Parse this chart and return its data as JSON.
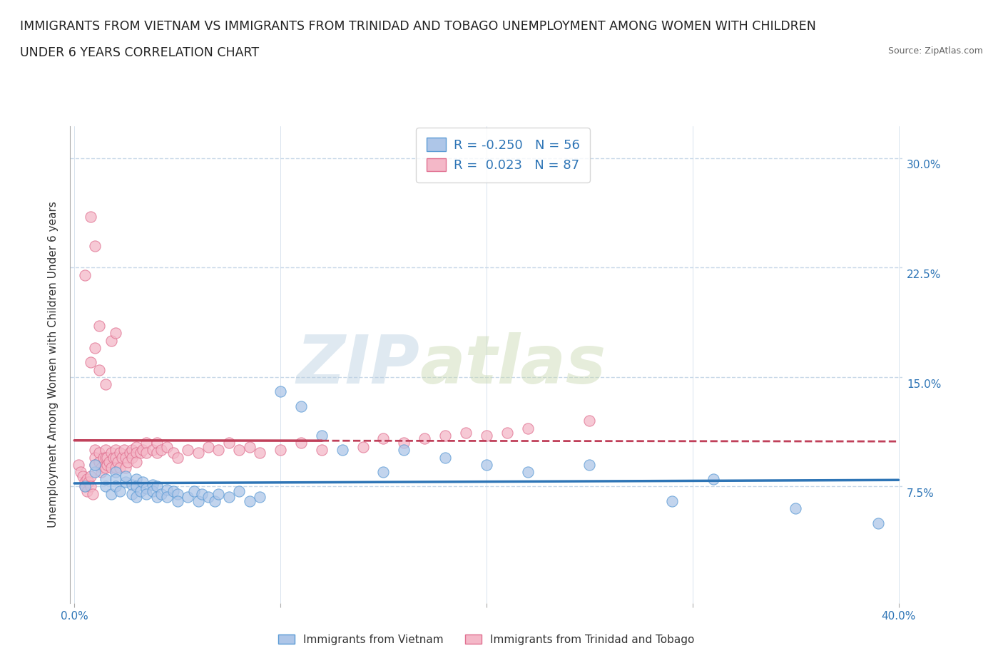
{
  "title_line1": "IMMIGRANTS FROM VIETNAM VS IMMIGRANTS FROM TRINIDAD AND TOBAGO UNEMPLOYMENT AMONG WOMEN WITH CHILDREN",
  "title_line2": "UNDER 6 YEARS CORRELATION CHART",
  "source": "Source: ZipAtlas.com",
  "ylabel": "Unemployment Among Women with Children Under 6 years",
  "xlim": [
    -0.002,
    0.402
  ],
  "ylim": [
    -0.005,
    0.322
  ],
  "xticks": [
    0.0,
    0.1,
    0.2,
    0.3,
    0.4
  ],
  "xticklabels": [
    "0.0%",
    "",
    "",
    "",
    "40.0%"
  ],
  "yticks": [
    0.0,
    0.075,
    0.15,
    0.225,
    0.3
  ],
  "yticklabels": [
    "",
    "7.5%",
    "15.0%",
    "22.5%",
    "30.0%"
  ],
  "vietnam_color": "#aec6e8",
  "vietnam_edge_color": "#5b9bd5",
  "vietnam_line_color": "#2e75b6",
  "tt_color": "#f4b8c8",
  "tt_edge_color": "#e07090",
  "tt_line_color": "#c0405a",
  "legend_label_color": "#2e75b6",
  "R_vietnam": -0.25,
  "N_vietnam": 56,
  "R_tt": 0.023,
  "N_tt": 87,
  "watermark_zip": "ZIP",
  "watermark_atlas": "atlas",
  "title_fontsize": 12.5,
  "label_fontsize": 11,
  "tick_fontsize": 11,
  "legend_fontsize": 13,
  "grid_color": "#c8d8e8",
  "vietnam_scatter_x": [
    0.005,
    0.01,
    0.01,
    0.015,
    0.015,
    0.018,
    0.02,
    0.02,
    0.02,
    0.022,
    0.025,
    0.025,
    0.028,
    0.028,
    0.03,
    0.03,
    0.03,
    0.032,
    0.033,
    0.035,
    0.035,
    0.038,
    0.038,
    0.04,
    0.04,
    0.042,
    0.045,
    0.045,
    0.048,
    0.05,
    0.05,
    0.055,
    0.058,
    0.06,
    0.062,
    0.065,
    0.068,
    0.07,
    0.075,
    0.08,
    0.085,
    0.09,
    0.1,
    0.11,
    0.12,
    0.13,
    0.15,
    0.16,
    0.18,
    0.2,
    0.22,
    0.25,
    0.29,
    0.31,
    0.35,
    0.39
  ],
  "vietnam_scatter_y": [
    0.075,
    0.085,
    0.09,
    0.075,
    0.08,
    0.07,
    0.085,
    0.08,
    0.075,
    0.072,
    0.078,
    0.082,
    0.076,
    0.07,
    0.08,
    0.075,
    0.068,
    0.072,
    0.078,
    0.074,
    0.07,
    0.076,
    0.072,
    0.075,
    0.068,
    0.07,
    0.073,
    0.068,
    0.072,
    0.07,
    0.065,
    0.068,
    0.072,
    0.065,
    0.07,
    0.068,
    0.065,
    0.07,
    0.068,
    0.072,
    0.065,
    0.068,
    0.14,
    0.13,
    0.11,
    0.1,
    0.085,
    0.1,
    0.095,
    0.09,
    0.085,
    0.09,
    0.065,
    0.08,
    0.06,
    0.05
  ],
  "tt_scatter_x": [
    0.002,
    0.003,
    0.004,
    0.005,
    0.005,
    0.006,
    0.006,
    0.007,
    0.008,
    0.008,
    0.009,
    0.01,
    0.01,
    0.01,
    0.012,
    0.012,
    0.013,
    0.013,
    0.014,
    0.015,
    0.015,
    0.015,
    0.016,
    0.016,
    0.017,
    0.018,
    0.018,
    0.019,
    0.02,
    0.02,
    0.02,
    0.021,
    0.022,
    0.022,
    0.023,
    0.024,
    0.025,
    0.025,
    0.026,
    0.027,
    0.028,
    0.028,
    0.03,
    0.03,
    0.03,
    0.032,
    0.033,
    0.035,
    0.035,
    0.038,
    0.04,
    0.04,
    0.042,
    0.045,
    0.048,
    0.05,
    0.055,
    0.06,
    0.065,
    0.07,
    0.075,
    0.08,
    0.085,
    0.09,
    0.1,
    0.11,
    0.12,
    0.14,
    0.15,
    0.16,
    0.17,
    0.18,
    0.19,
    0.2,
    0.21,
    0.22,
    0.25,
    0.008,
    0.01,
    0.012,
    0.015,
    0.018,
    0.02,
    0.005,
    0.008,
    0.01,
    0.012
  ],
  "tt_scatter_y": [
    0.09,
    0.085,
    0.082,
    0.078,
    0.075,
    0.08,
    0.072,
    0.078,
    0.082,
    0.075,
    0.07,
    0.1,
    0.095,
    0.09,
    0.098,
    0.092,
    0.088,
    0.085,
    0.095,
    0.1,
    0.095,
    0.088,
    0.095,
    0.09,
    0.092,
    0.098,
    0.088,
    0.095,
    0.1,
    0.095,
    0.088,
    0.092,
    0.098,
    0.088,
    0.095,
    0.1,
    0.095,
    0.088,
    0.092,
    0.098,
    0.1,
    0.095,
    0.102,
    0.098,
    0.092,
    0.098,
    0.1,
    0.105,
    0.098,
    0.1,
    0.105,
    0.098,
    0.1,
    0.102,
    0.098,
    0.095,
    0.1,
    0.098,
    0.102,
    0.1,
    0.105,
    0.1,
    0.102,
    0.098,
    0.1,
    0.105,
    0.1,
    0.102,
    0.108,
    0.105,
    0.108,
    0.11,
    0.112,
    0.11,
    0.112,
    0.115,
    0.12,
    0.16,
    0.17,
    0.155,
    0.145,
    0.175,
    0.18,
    0.22,
    0.26,
    0.24,
    0.185
  ]
}
